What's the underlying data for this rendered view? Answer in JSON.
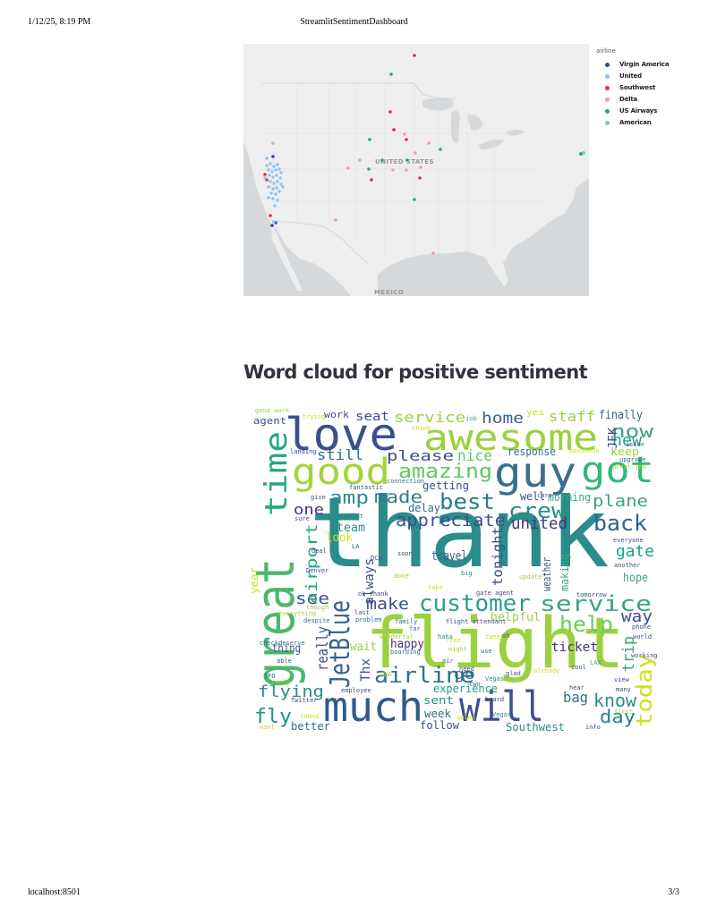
{
  "print_header": {
    "datetime": "1/12/25, 8:19 PM",
    "page_title": "StreamlitSentimentDashboard"
  },
  "print_footer": {
    "url": "localhost:8501",
    "page_number": "3/3"
  },
  "map": {
    "country_label": "UNITED STATES",
    "mexico_label": "MEXICO",
    "info_icon": "i",
    "legend_title": "airline",
    "legend": [
      {
        "name": "Virgin America",
        "color": "#2a4aa8"
      },
      {
        "name": "United",
        "color": "#8fc3ee"
      },
      {
        "name": "Southwest",
        "color": "#e0323a"
      },
      {
        "name": "Delta",
        "color": "#f59ca8"
      },
      {
        "name": "US Airways",
        "color": "#2aa876"
      },
      {
        "name": "American",
        "color": "#7fd08a"
      }
    ]
  },
  "wordcloud_section": {
    "title": "Word cloud for positive sentiment",
    "words": [
      "thank",
      "flight",
      "great",
      "much",
      "will",
      "love",
      "awesome",
      "good",
      "guy",
      "got",
      "time",
      "JetBlue",
      "customer",
      "service",
      "airline",
      "amazing",
      "best",
      "crew",
      "back",
      "help",
      "today",
      "amp",
      "made",
      "appreciate",
      "united",
      "plane",
      "gate",
      "fly",
      "flying",
      "day",
      "know",
      "see",
      "make",
      "nice",
      "still",
      "please",
      "seat",
      "home",
      "staff",
      "now",
      "new",
      "finally",
      "work",
      "agent",
      "service",
      "yes",
      "always",
      "travel",
      "tonight",
      "trip",
      "way",
      "ticket",
      "bag",
      "hope",
      "happy",
      "wait",
      "sent",
      "week",
      "experience",
      "better",
      "follow",
      "Southwest",
      "airport",
      "really",
      "year",
      "thing",
      "one",
      "team",
      "look",
      "response",
      "morning",
      "delay",
      "getting",
      "keep",
      "JFK",
      "helpful",
      "Thx",
      "go",
      "well",
      "making",
      "weather"
    ]
  }
}
